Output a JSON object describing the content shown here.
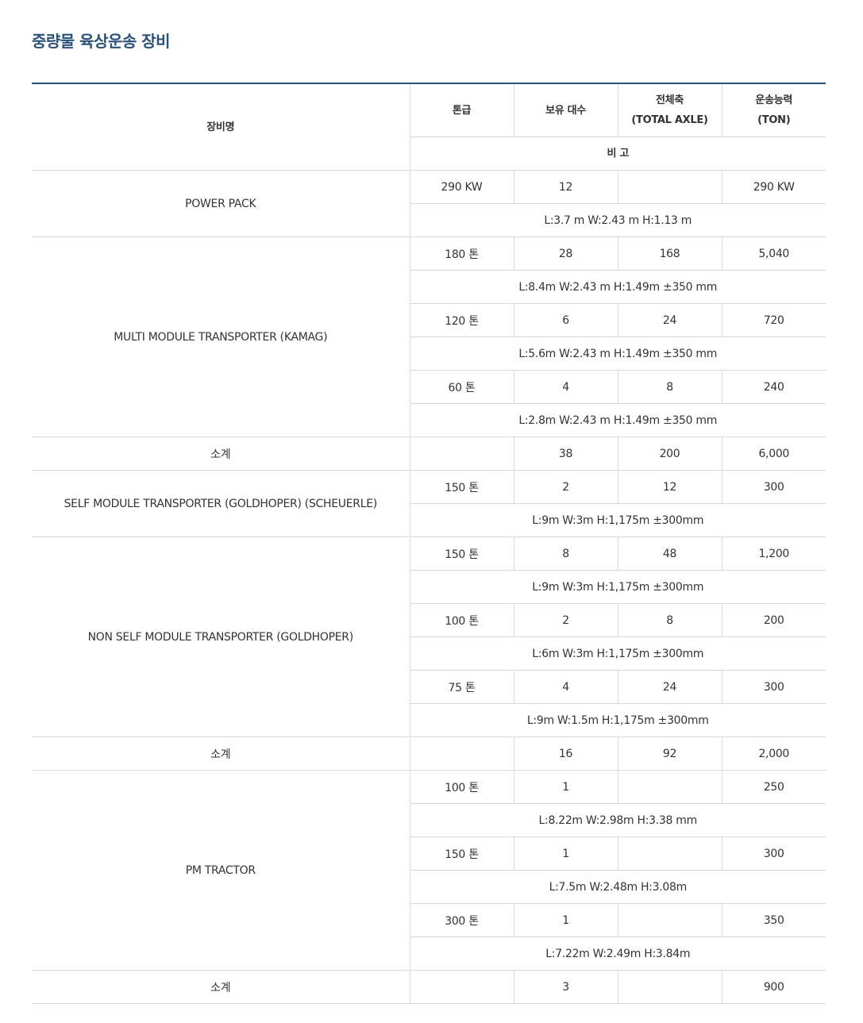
{
  "title": "중량물 육상운송 장비",
  "header": {
    "name": "장비명",
    "grade": "톤급",
    "count": "보유 대수",
    "axle_line1": "전체축",
    "axle_line2": "(TOTAL AXLE)",
    "capacity_line1": "운송능력",
    "capacity_line2": "(TON)",
    "remarks": "비 고"
  },
  "groups": [
    {
      "name": "POWER PACK",
      "rows": [
        {
          "grade": "290 KW",
          "count": "12",
          "axle": "",
          "capacity": "290 KW",
          "remark": "L:3.7 m W:2.43 m H:1.13 m"
        }
      ]
    },
    {
      "name": "MULTI MODULE TRANSPORTER (KAMAG)",
      "rows": [
        {
          "grade": "180 톤",
          "count": "28",
          "axle": "168",
          "capacity": "5,040",
          "remark": "L:8.4m W:2.43 m H:1.49m ±350 mm"
        },
        {
          "grade": "120 톤",
          "count": "6",
          "axle": "24",
          "capacity": "720",
          "remark": "L:5.6m W:2.43 m H:1.49m ±350 mm"
        },
        {
          "grade": "60 톤",
          "count": "4",
          "axle": "8",
          "capacity": "240",
          "remark": "L:2.8m W:2.43 m H:1.49m ±350 mm"
        }
      ]
    },
    {
      "subtotal": true,
      "label": "소계",
      "grade": "",
      "count": "38",
      "axle": "200",
      "capacity": "6,000"
    },
    {
      "name": "SELF MODULE TRANSPORTER (GOLDHOPER) (SCHEUERLE)",
      "rows": [
        {
          "grade": "150 톤",
          "count": "2",
          "axle": "12",
          "capacity": "300",
          "remark": "L:9m W:3m H:1,175m ±300mm"
        }
      ]
    },
    {
      "name": "NON SELF MODULE TRANSPORTER (GOLDHOPER)",
      "rows": [
        {
          "grade": "150 톤",
          "count": "8",
          "axle": "48",
          "capacity": "1,200",
          "remark": "L:9m W:3m H:1,175m ±300mm"
        },
        {
          "grade": "100 톤",
          "count": "2",
          "axle": "8",
          "capacity": "200",
          "remark": "L:6m W:3m H:1,175m ±300mm"
        },
        {
          "grade": "75 톤",
          "count": "4",
          "axle": "24",
          "capacity": "300",
          "remark": "L:9m W:1.5m H:1,175m ±300mm"
        }
      ]
    },
    {
      "subtotal": true,
      "label": "소계",
      "grade": "",
      "count": "16",
      "axle": "92",
      "capacity": "2,000"
    },
    {
      "name": "PM TRACTOR",
      "rows": [
        {
          "grade": "100 톤",
          "count": "1",
          "axle": "",
          "capacity": "250",
          "remark": "L:8.22m W:2.98m H:3.38 mm"
        },
        {
          "grade": "150 톤",
          "count": "1",
          "axle": "",
          "capacity": "300",
          "remark": "L:7.5m W:2.48m H:3.08m"
        },
        {
          "grade": "300 톤",
          "count": "1",
          "axle": "",
          "capacity": "350",
          "remark": "L:7.22m W:2.49m H:3.84m"
        }
      ]
    },
    {
      "subtotal": true,
      "label": "소계",
      "grade": "",
      "count": "3",
      "axle": "",
      "capacity": "900"
    }
  ],
  "colors": {
    "title": "#2a5279",
    "top_border": "#2a5279",
    "grid": "#d9d9d9",
    "text": "#333333"
  }
}
